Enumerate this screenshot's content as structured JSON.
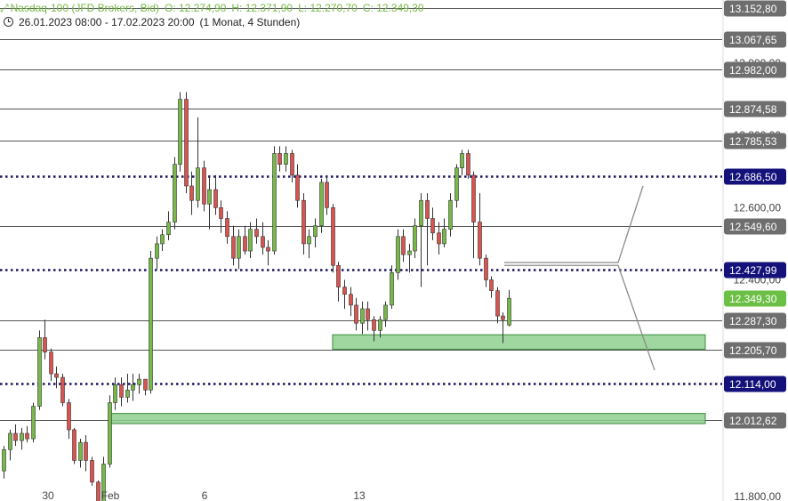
{
  "header": {
    "symbol": "Nasdaq-100 (JFD Brokers, Bid)",
    "open": "O: 12.274,90",
    "high": "H: 12.371,90",
    "low": "L: 12.270,70",
    "close": "C: 12.349,30",
    "range": "26.01.2023 08:00 - 17.02.2023 20:00",
    "interval": "(1 Monat, 4 Stunden)"
  },
  "colors": {
    "up": "#76b947",
    "down": "#d9534f",
    "dotted": "#1b1464",
    "zone_fill": "#8fd08f",
    "zone_stroke": "#3a8a3a",
    "label_gray": "#6e6e6e",
    "label_navy": "#14127a",
    "label_green": "#6cbf45"
  },
  "chart_data": {
    "type": "candlestick",
    "x_ticks": [
      "30",
      "Feb",
      "6",
      "13"
    ],
    "y_axis_ticks": [
      "13.000,00",
      "12.800,00",
      "12.600,00",
      "12.400,00",
      "11.800,00"
    ],
    "ylim": [
      11800,
      13170
    ],
    "levels": [
      {
        "value": 13152.8,
        "label": "13.152,80",
        "style": "solid"
      },
      {
        "value": 13067.65,
        "label": "13.067,65",
        "style": "solid"
      },
      {
        "value": 12982.0,
        "label": "12.982,00",
        "style": "solid"
      },
      {
        "value": 12874.58,
        "label": "12.874,58",
        "style": "solid"
      },
      {
        "value": 12785.53,
        "label": "12.785,53",
        "style": "solid"
      },
      {
        "value": 12686.5,
        "label": "12.686,50",
        "style": "dotted"
      },
      {
        "value": 12549.6,
        "label": "12.549,60",
        "style": "solid"
      },
      {
        "value": 12427.99,
        "label": "12.427,99",
        "style": "dotted"
      },
      {
        "value": 12349.3,
        "label": "12.349,30",
        "style": "current"
      },
      {
        "value": 12287.3,
        "label": "12.287,30",
        "style": "solid"
      },
      {
        "value": 12205.7,
        "label": "12.205,70",
        "style": "solid"
      },
      {
        "value": 12114.0,
        "label": "12.114,00",
        "style": "dotted"
      },
      {
        "value": 12012.62,
        "label": "12.012,62",
        "style": "solid"
      }
    ],
    "zones": [
      {
        "from": 12208,
        "to": 12248
      },
      {
        "from": 12002,
        "to": 12030
      }
    ],
    "candles": [
      [
        11871,
        11940,
        11850,
        11930
      ],
      [
        11930,
        11985,
        11900,
        11975
      ],
      [
        11975,
        12000,
        11940,
        11955
      ],
      [
        11955,
        11990,
        11930,
        11975
      ],
      [
        11975,
        11995,
        11950,
        11960
      ],
      [
        11960,
        12060,
        11950,
        12050
      ],
      [
        12050,
        12260,
        12040,
        12240
      ],
      [
        12240,
        12290,
        12180,
        12200
      ],
      [
        12200,
        12210,
        12120,
        12140
      ],
      [
        12140,
        12160,
        12100,
        12130
      ],
      [
        12130,
        12140,
        12050,
        12060
      ],
      [
        12060,
        12070,
        11960,
        11985
      ],
      [
        11985,
        11990,
        11890,
        11900
      ],
      [
        11900,
        11960,
        11880,
        11950
      ],
      [
        11950,
        11970,
        11870,
        11900
      ],
      [
        11900,
        11910,
        11830,
        11840
      ],
      [
        11840,
        11845,
        11770,
        11775
      ],
      [
        11775,
        11910,
        11765,
        11890
      ],
      [
        11890,
        12080,
        11880,
        12060
      ],
      [
        12060,
        12130,
        12040,
        12110
      ],
      [
        12110,
        12130,
        12050,
        12075
      ],
      [
        12075,
        12140,
        12060,
        12095
      ],
      [
        12095,
        12140,
        12065,
        12110
      ],
      [
        12110,
        12140,
        12085,
        12125
      ],
      [
        12125,
        12125,
        12080,
        12095
      ],
      [
        12095,
        12480,
        12085,
        12460
      ],
      [
        12460,
        12520,
        12430,
        12500
      ],
      [
        12500,
        12540,
        12480,
        12525
      ],
      [
        12525,
        12590,
        12510,
        12560
      ],
      [
        12560,
        12740,
        12540,
        12720
      ],
      [
        12720,
        12920,
        12700,
        12900
      ],
      [
        12900,
        12920,
        12640,
        12660
      ],
      [
        12660,
        12700,
        12580,
        12620
      ],
      [
        12620,
        12850,
        12600,
        12710
      ],
      [
        12710,
        12730,
        12590,
        12610
      ],
      [
        12610,
        12690,
        12540,
        12650
      ],
      [
        12650,
        12690,
        12580,
        12600
      ],
      [
        12600,
        12620,
        12530,
        12570
      ],
      [
        12570,
        12590,
        12500,
        12520
      ],
      [
        12520,
        12550,
        12440,
        12460
      ],
      [
        12460,
        12540,
        12430,
        12520
      ],
      [
        12520,
        12550,
        12470,
        12480
      ],
      [
        12480,
        12560,
        12460,
        12540
      ],
      [
        12540,
        12570,
        12500,
        12520
      ],
      [
        12520,
        12560,
        12470,
        12490
      ],
      [
        12490,
        12510,
        12440,
        12480
      ],
      [
        12480,
        12770,
        12470,
        12750
      ],
      [
        12750,
        12770,
        12700,
        12720
      ],
      [
        12720,
        12770,
        12700,
        12750
      ],
      [
        12750,
        12760,
        12670,
        12690
      ],
      [
        12690,
        12720,
        12600,
        12620
      ],
      [
        12620,
        12640,
        12470,
        12500
      ],
      [
        12500,
        12540,
        12460,
        12520
      ],
      [
        12520,
        12570,
        12490,
        12550
      ],
      [
        12550,
        12680,
        12530,
        12670
      ],
      [
        12670,
        12690,
        12580,
        12600
      ],
      [
        12600,
        12610,
        12420,
        12440
      ],
      [
        12440,
        12450,
        12340,
        12380
      ],
      [
        12380,
        12400,
        12320,
        12360
      ],
      [
        12360,
        12380,
        12300,
        12330
      ],
      [
        12330,
        12350,
        12260,
        12280
      ],
      [
        12280,
        12340,
        12250,
        12320
      ],
      [
        12320,
        12340,
        12260,
        12290
      ],
      [
        12290,
        12300,
        12230,
        12260
      ],
      [
        12260,
        12300,
        12240,
        12290
      ],
      [
        12290,
        12340,
        12270,
        12330
      ],
      [
        12330,
        12440,
        12320,
        12420
      ],
      [
        12420,
        12540,
        12400,
        12520
      ],
      [
        12520,
        12540,
        12450,
        12470
      ],
      [
        12470,
        12500,
        12420,
        12480
      ],
      [
        12480,
        12570,
        12460,
        12550
      ],
      [
        12550,
        12640,
        12380,
        12620
      ],
      [
        12620,
        12640,
        12440,
        12570
      ],
      [
        12570,
        12600,
        12510,
        12530
      ],
      [
        12530,
        12560,
        12470,
        12500
      ],
      [
        12500,
        12570,
        12490,
        12540
      ],
      [
        12540,
        12640,
        12520,
        12620
      ],
      [
        12620,
        12720,
        12600,
        12710
      ],
      [
        12710,
        12760,
        12690,
        12750
      ],
      [
        12750,
        12760,
        12680,
        12690
      ],
      [
        12690,
        12700,
        12460,
        12560
      ],
      [
        12560,
        12640,
        12440,
        12460
      ],
      [
        12460,
        12470,
        12380,
        12400
      ],
      [
        12400,
        12410,
        12350,
        12370
      ],
      [
        12370,
        12380,
        12280,
        12300
      ],
      [
        12300,
        12310,
        12225,
        12290
      ],
      [
        12275,
        12372,
        12271,
        12349
      ]
    ],
    "drawings": [
      {
        "points": [
          [
            12448
          ],
          [
            12448
          ],
          [
            12660
          ]
        ],
        "kind": "hand-drawn-projection-up"
      },
      {
        "points": [
          [
            12440
          ],
          [
            12440
          ],
          [
            12150
          ]
        ],
        "kind": "hand-drawn-projection-down"
      }
    ]
  }
}
